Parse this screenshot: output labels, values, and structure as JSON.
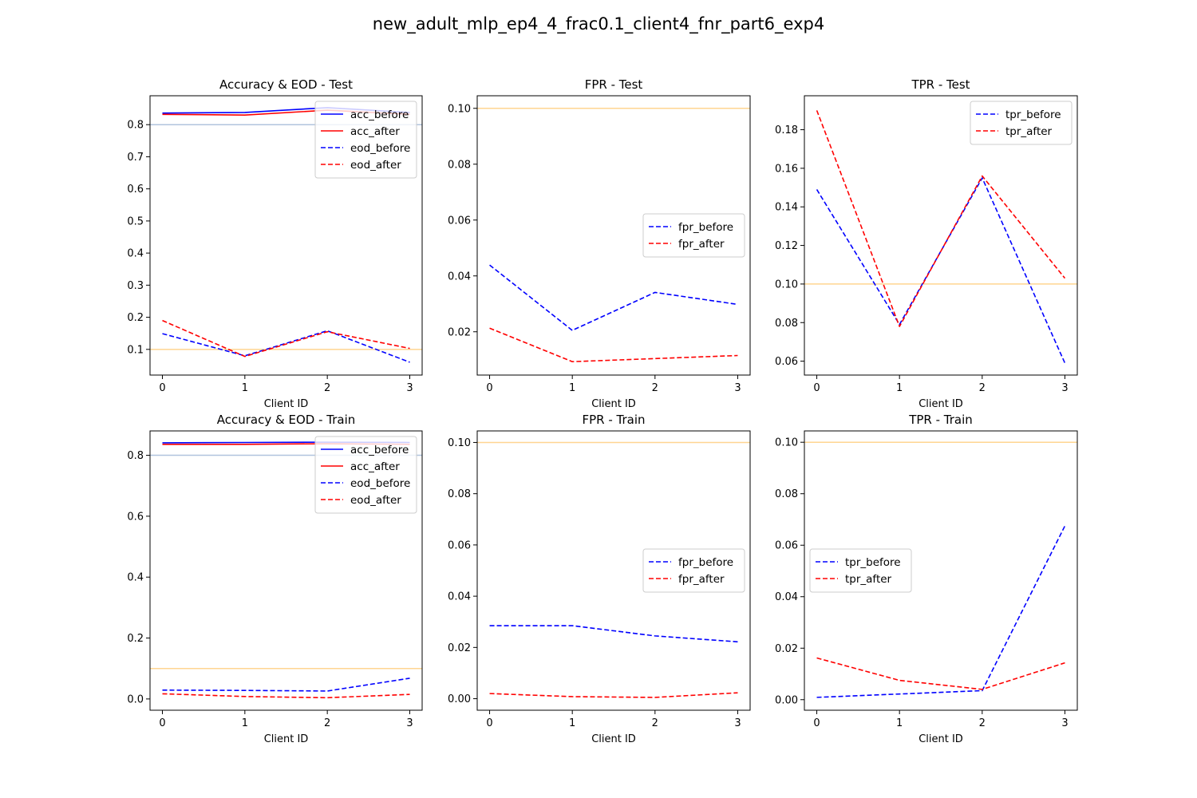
{
  "figure_title": "new_adult_mlp_ep4_4_frac0.1_client4_fnr_part6_exp4",
  "chart_data": [
    {
      "id": "acc-eod-test",
      "type": "line",
      "title": "Accuracy & EOD - Test",
      "xlabel": "Client ID",
      "ylabel": "",
      "x": [
        0,
        1,
        2,
        3
      ],
      "xticks": [
        "0",
        "1",
        "2",
        "3"
      ],
      "xlim": [
        -0.15,
        3.15
      ],
      "ylim": [
        0.02,
        0.89
      ],
      "yticks": [
        0.1,
        0.2,
        0.3,
        0.4,
        0.5,
        0.6,
        0.7,
        0.8
      ],
      "ytick_labels": [
        "0.1",
        "0.2",
        "0.3",
        "0.4",
        "0.5",
        "0.6",
        "0.7",
        "0.8"
      ],
      "grid": false,
      "legend": "upper-right",
      "reference_lines": [
        {
          "y": 0.8,
          "color": "#b0c4de"
        },
        {
          "y": 0.1,
          "color": "#ffd591"
        }
      ],
      "series": [
        {
          "name": "acc_before",
          "values": [
            0.836,
            0.838,
            0.853,
            0.838
          ],
          "color": "#0000ff",
          "dashed": false
        },
        {
          "name": "acc_after",
          "values": [
            0.832,
            0.83,
            0.845,
            0.832
          ],
          "color": "#ff0000",
          "dashed": false
        },
        {
          "name": "eod_before",
          "values": [
            0.149,
            0.08,
            0.158,
            0.06
          ],
          "color": "#0000ff",
          "dashed": true
        },
        {
          "name": "eod_after",
          "values": [
            0.19,
            0.078,
            0.155,
            0.103
          ],
          "color": "#ff0000",
          "dashed": true
        }
      ]
    },
    {
      "id": "fpr-test",
      "type": "line",
      "title": "FPR - Test",
      "xlabel": "Client ID",
      "ylabel": "",
      "x": [
        0,
        1,
        2,
        3
      ],
      "xticks": [
        "0",
        "1",
        "2",
        "3"
      ],
      "xlim": [
        -0.15,
        3.15
      ],
      "ylim": [
        0.0045,
        0.1045
      ],
      "yticks": [
        0.02,
        0.04,
        0.06,
        0.08,
        0.1
      ],
      "ytick_labels": [
        "0.02",
        "0.04",
        "0.06",
        "0.08",
        "0.10"
      ],
      "grid": false,
      "legend": "center-right",
      "reference_lines": [
        {
          "y": 0.1,
          "color": "#ffd591"
        }
      ],
      "series": [
        {
          "name": "fpr_before",
          "values": [
            0.0439,
            0.0205,
            0.0341,
            0.0298
          ],
          "color": "#0000ff",
          "dashed": true
        },
        {
          "name": "fpr_after",
          "values": [
            0.0213,
            0.0093,
            0.0104,
            0.0115
          ],
          "color": "#ff0000",
          "dashed": true
        }
      ]
    },
    {
      "id": "tpr-test",
      "type": "line",
      "title": "TPR - Test",
      "xlabel": "Client ID",
      "ylabel": "",
      "x": [
        0,
        1,
        2,
        3
      ],
      "xticks": [
        "0",
        "1",
        "2",
        "3"
      ],
      "xlim": [
        -0.15,
        3.15
      ],
      "ylim": [
        0.0528,
        0.1976
      ],
      "yticks": [
        0.06,
        0.08,
        0.1,
        0.12,
        0.14,
        0.16,
        0.18
      ],
      "ytick_labels": [
        "0.06",
        "0.08",
        "0.10",
        "0.12",
        "0.14",
        "0.16",
        "0.18"
      ],
      "grid": false,
      "legend": "upper-right",
      "reference_lines": [
        {
          "y": 0.1,
          "color": "#ffd591"
        }
      ],
      "series": [
        {
          "name": "tpr_before",
          "values": [
            0.149,
            0.079,
            0.155,
            0.059
          ],
          "color": "#0000ff",
          "dashed": true
        },
        {
          "name": "tpr_after",
          "values": [
            0.19,
            0.078,
            0.156,
            0.103
          ],
          "color": "#ff0000",
          "dashed": true
        }
      ]
    },
    {
      "id": "acc-eod-train",
      "type": "line",
      "title": "Accuracy & EOD - Train",
      "xlabel": "Client ID",
      "ylabel": "",
      "x": [
        0,
        1,
        2,
        3
      ],
      "xticks": [
        "0",
        "1",
        "2",
        "3"
      ],
      "xlim": [
        -0.15,
        3.15
      ],
      "ylim": [
        -0.037,
        0.88
      ],
      "yticks": [
        0.0,
        0.2,
        0.4,
        0.6,
        0.8
      ],
      "ytick_labels": [
        "0.0",
        "0.2",
        "0.4",
        "0.6",
        "0.8"
      ],
      "grid": false,
      "legend": "upper-right",
      "reference_lines": [
        {
          "y": 0.8,
          "color": "#b0c4de"
        },
        {
          "y": 0.1,
          "color": "#ffd591"
        }
      ],
      "series": [
        {
          "name": "acc_before",
          "values": [
            0.841,
            0.842,
            0.843,
            0.842
          ],
          "color": "#0000ff",
          "dashed": false
        },
        {
          "name": "acc_after",
          "values": [
            0.836,
            0.836,
            0.838,
            0.836
          ],
          "color": "#ff0000",
          "dashed": false
        },
        {
          "name": "eod_before",
          "values": [
            0.029,
            0.028,
            0.026,
            0.068
          ],
          "color": "#0000ff",
          "dashed": true
        },
        {
          "name": "eod_after",
          "values": [
            0.017,
            0.008,
            0.004,
            0.015
          ],
          "color": "#ff0000",
          "dashed": true
        }
      ]
    },
    {
      "id": "fpr-train",
      "type": "line",
      "title": "FPR - Train",
      "xlabel": "Client ID",
      "ylabel": "",
      "x": [
        0,
        1,
        2,
        3
      ],
      "xticks": [
        "0",
        "1",
        "2",
        "3"
      ],
      "xlim": [
        -0.15,
        3.15
      ],
      "ylim": [
        -0.0045,
        0.1045
      ],
      "yticks": [
        0.0,
        0.02,
        0.04,
        0.06,
        0.08,
        0.1
      ],
      "ytick_labels": [
        "0.00",
        "0.02",
        "0.04",
        "0.06",
        "0.08",
        "0.10"
      ],
      "grid": false,
      "legend": "center-right",
      "reference_lines": [
        {
          "y": 0.1,
          "color": "#ffd591"
        }
      ],
      "series": [
        {
          "name": "fpr_before",
          "values": [
            0.0285,
            0.0285,
            0.0245,
            0.0222
          ],
          "color": "#0000ff",
          "dashed": true
        },
        {
          "name": "fpr_after",
          "values": [
            0.002,
            0.0008,
            0.0005,
            0.0023
          ],
          "color": "#ff0000",
          "dashed": true
        }
      ]
    },
    {
      "id": "tpr-train",
      "type": "line",
      "title": "TPR - Train",
      "xlabel": "Client ID",
      "ylabel": "",
      "x": [
        0,
        1,
        2,
        3
      ],
      "xticks": [
        "0",
        "1",
        "2",
        "3"
      ],
      "xlim": [
        -0.15,
        3.15
      ],
      "ylim": [
        -0.0041,
        0.1044
      ],
      "yticks": [
        0.0,
        0.02,
        0.04,
        0.06,
        0.08,
        0.1
      ],
      "ytick_labels": [
        "0.00",
        "0.02",
        "0.04",
        "0.06",
        "0.08",
        "0.10"
      ],
      "grid": false,
      "legend": "center-left",
      "reference_lines": [
        {
          "y": 0.1,
          "color": "#ffd591"
        }
      ],
      "series": [
        {
          "name": "tpr_before",
          "values": [
            0.0009,
            0.0022,
            0.0035,
            0.0675
          ],
          "color": "#0000ff",
          "dashed": true
        },
        {
          "name": "tpr_after",
          "values": [
            0.0162,
            0.0075,
            0.004,
            0.0143
          ],
          "color": "#ff0000",
          "dashed": true
        }
      ]
    }
  ]
}
